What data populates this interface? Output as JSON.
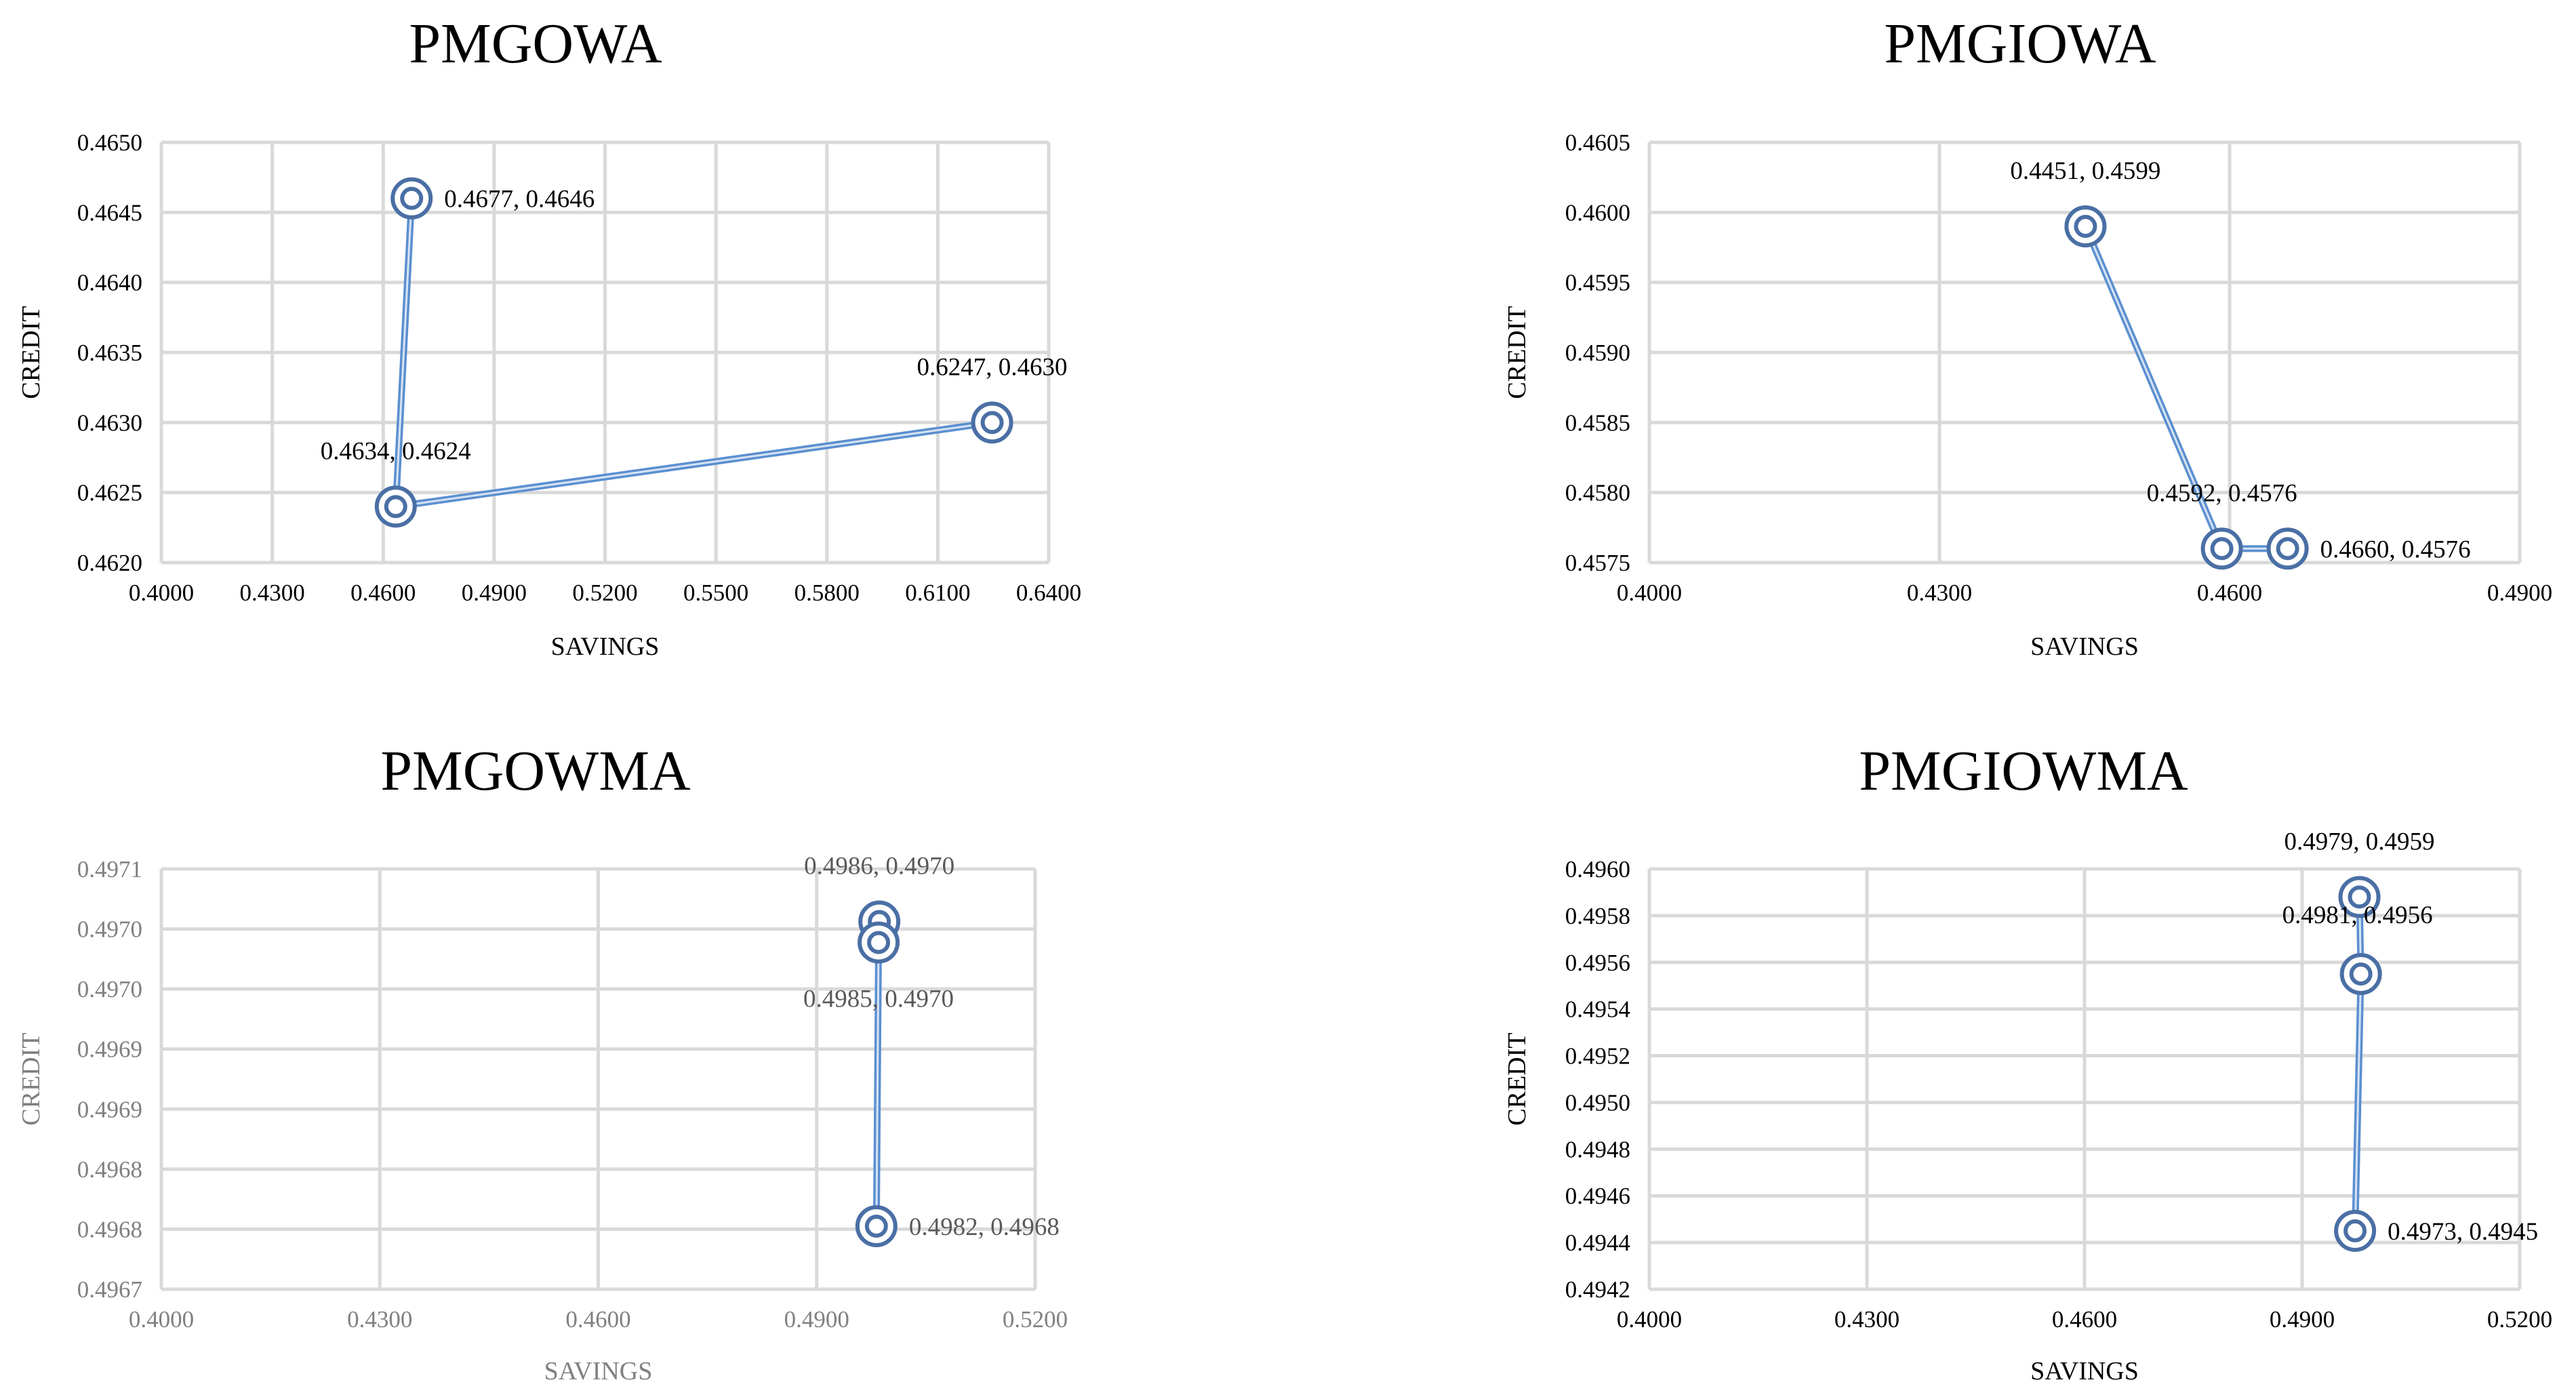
{
  "chart_data": [
    {
      "type": "line",
      "title": "PMGOWA",
      "xlabel": "SAVINGS",
      "ylabel": "CREDIT",
      "xlim": [
        0.4,
        0.64
      ],
      "ylim": [
        0.462,
        0.465
      ],
      "xticks": [
        "0.4000",
        "0.4300",
        "0.4600",
        "0.4900",
        "0.5200",
        "0.5500",
        "0.5800",
        "0.6100",
        "0.6400"
      ],
      "yticks": [
        "0.4620",
        "0.4625",
        "0.4630",
        "0.4635",
        "0.4640",
        "0.4645",
        "0.4650"
      ],
      "style": "black",
      "points": [
        {
          "x": 0.4677,
          "y": 0.4646,
          "label": "0.4677, 0.4646",
          "pos": "right"
        },
        {
          "x": 0.4634,
          "y": 0.4624,
          "label": "0.4634, 0.4624",
          "pos": "above"
        },
        {
          "x": 0.6247,
          "y": 0.463,
          "label": "0.6247, 0.4630",
          "pos": "above"
        }
      ]
    },
    {
      "type": "line",
      "title": "PMGIOWA",
      "xlabel": "SAVINGS",
      "ylabel": "CREDIT",
      "xlim": [
        0.4,
        0.49
      ],
      "ylim": [
        0.4575,
        0.4605
      ],
      "xticks": [
        "0.4000",
        "0.4300",
        "0.4600",
        "0.4900"
      ],
      "yticks": [
        "0.4575",
        "0.4580",
        "0.4585",
        "0.4590",
        "0.4595",
        "0.4600",
        "0.4605"
      ],
      "style": "black",
      "points": [
        {
          "x": 0.4451,
          "y": 0.4599,
          "label": "0.4451, 0.4599",
          "pos": "above"
        },
        {
          "x": 0.4592,
          "y": 0.4576,
          "label": "0.4592, 0.4576",
          "pos": "above"
        },
        {
          "x": 0.466,
          "y": 0.4576,
          "label": "0.4660, 0.4576",
          "pos": "right"
        }
      ]
    },
    {
      "type": "line",
      "title": "PMGOWMA",
      "xlabel": "SAVINGS",
      "ylabel": "CREDIT",
      "xlim": [
        0.4,
        0.52
      ],
      "ylim": [
        0.4967,
        0.4971
      ],
      "xticks": [
        "0.4000",
        "0.4300",
        "0.4600",
        "0.4900",
        "0.5200"
      ],
      "yticks": [
        "0.4967",
        "0.4968",
        "0.4968",
        "0.4969",
        "0.4969",
        "0.4970",
        "0.4970",
        "0.4971"
      ],
      "style": "grey",
      "points": [
        {
          "x": 0.4986,
          "y": 0.49705,
          "label": "0.4986, 0.4970",
          "pos": "above"
        },
        {
          "x": 0.4985,
          "y": 0.49703,
          "label": "0.4985, 0.4970",
          "pos": "below"
        },
        {
          "x": 0.4982,
          "y": 0.49676,
          "label": "0.4982, 0.4968",
          "pos": "right"
        }
      ]
    },
    {
      "type": "line",
      "title": "PMGIOWMA",
      "xlabel": "SAVINGS",
      "ylabel": "CREDIT",
      "xlim": [
        0.4,
        0.52
      ],
      "ylim": [
        0.4942,
        0.496
      ],
      "xticks": [
        "0.4000",
        "0.4300",
        "0.4600",
        "0.4900",
        "0.5200"
      ],
      "yticks": [
        "0.4942",
        "0.4944",
        "0.4946",
        "0.4948",
        "0.4950",
        "0.4952",
        "0.4954",
        "0.4956",
        "0.4958",
        "0.4960"
      ],
      "style": "black",
      "points": [
        {
          "x": 0.4979,
          "y": 0.49588,
          "label": "0.4979, 0.4959",
          "pos": "above"
        },
        {
          "x": 0.4981,
          "y": 0.49555,
          "label": "0.4981, 0.4956",
          "pos": "aboveleft"
        },
        {
          "x": 0.4973,
          "y": 0.49445,
          "label": "0.4973, 0.4945",
          "pos": "right"
        }
      ]
    }
  ]
}
